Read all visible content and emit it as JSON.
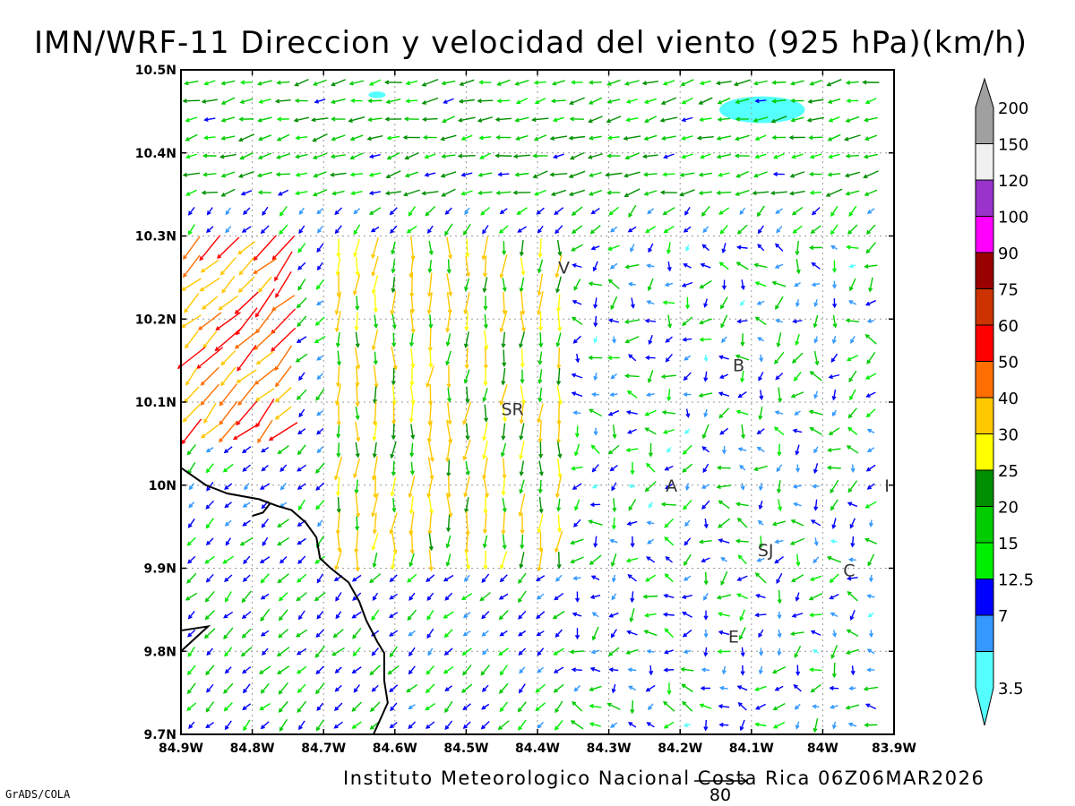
{
  "title": "IMN/WRF-11 Direccion y velocidad del viento (925 hPa)(km/h)",
  "footer": "Instituto Meteorologico Nacional Costa Rica 06Z06MAR2026",
  "brand": "GrADS/COLA",
  "reference_vector": {
    "label": "80",
    "speed": 80
  },
  "map": {
    "lon_range": [
      -84.9,
      -83.9
    ],
    "lat_range": [
      9.7,
      10.5
    ],
    "grid": true,
    "x_ticks": [
      {
        "value": -84.9,
        "label": "84.9W"
      },
      {
        "value": -84.8,
        "label": "84.8W"
      },
      {
        "value": -84.7,
        "label": "84.7W"
      },
      {
        "value": -84.6,
        "label": "84.6W"
      },
      {
        "value": -84.5,
        "label": "84.5W"
      },
      {
        "value": -84.4,
        "label": "84.4W"
      },
      {
        "value": -84.3,
        "label": "84.3W"
      },
      {
        "value": -84.2,
        "label": "84.2W"
      },
      {
        "value": -84.1,
        "label": "84.1W"
      },
      {
        "value": -84.0,
        "label": "84W"
      },
      {
        "value": -83.9,
        "label": "83.9W"
      }
    ],
    "y_ticks": [
      {
        "value": 10.5,
        "label": "10.5N"
      },
      {
        "value": 10.4,
        "label": "10.4N"
      },
      {
        "value": 10.3,
        "label": "10.3N"
      },
      {
        "value": 10.2,
        "label": "10.2N"
      },
      {
        "value": 10.1,
        "label": "10.1N"
      },
      {
        "value": 10.0,
        "label": "10N"
      },
      {
        "value": 9.9,
        "label": "9.9N"
      },
      {
        "value": 9.8,
        "label": "9.8N"
      },
      {
        "value": 9.7,
        "label": "9.7N"
      }
    ],
    "city_labels": [
      {
        "text": "V",
        "lon": -84.363,
        "lat": 10.262
      },
      {
        "text": "SR",
        "lon": -84.435,
        "lat": 10.092
      },
      {
        "text": "B",
        "lon": -84.118,
        "lat": 10.145
      },
      {
        "text": "A",
        "lon": -84.212,
        "lat": 10.0
      },
      {
        "text": "I",
        "lon": -83.91,
        "lat": 10.0
      },
      {
        "text": "SJ",
        "lon": -84.08,
        "lat": 9.922
      },
      {
        "text": "C",
        "lon": -83.963,
        "lat": 9.898
      },
      {
        "text": "E",
        "lon": -84.125,
        "lat": 9.818
      }
    ],
    "coastline": [
      [
        [
          -84.9,
          10.021
        ],
        [
          -84.865,
          10.0
        ],
        [
          -84.835,
          9.99
        ],
        [
          -84.79,
          9.983
        ],
        [
          -84.765,
          9.975
        ],
        [
          -84.745,
          9.97
        ],
        [
          -84.725,
          9.955
        ],
        [
          -84.71,
          9.937
        ],
        [
          -84.705,
          9.912
        ],
        [
          -84.69,
          9.9
        ],
        [
          -84.665,
          9.883
        ],
        [
          -84.65,
          9.86
        ],
        [
          -84.64,
          9.837
        ],
        [
          -84.625,
          9.812
        ],
        [
          -84.615,
          9.798
        ],
        [
          -84.615,
          9.765
        ],
        [
          -84.61,
          9.738
        ],
        [
          -84.63,
          9.7
        ]
      ],
      [
        [
          -84.79,
          9.983
        ],
        [
          -84.775,
          9.978
        ],
        [
          -84.785,
          9.967
        ],
        [
          -84.8,
          9.963
        ]
      ],
      [
        [
          -84.9,
          9.825
        ],
        [
          -84.862,
          9.83
        ],
        [
          -84.9,
          9.8
        ]
      ]
    ],
    "shaded_regions": [
      {
        "color": "#55ffff",
        "center": [
          -84.085,
          10.452
        ],
        "radius_deg": [
          0.06,
          0.016
        ]
      },
      {
        "color": "#55ffff",
        "center": [
          -84.625,
          10.47
        ],
        "radius_deg": [
          0.012,
          0.004
        ]
      }
    ]
  },
  "colorbar": {
    "levels": [
      {
        "color": "#55ffff",
        "label": "3.5"
      },
      {
        "color": "#3399ff",
        "label": "7"
      },
      {
        "color": "#0000ff",
        "label": "12.5"
      },
      {
        "color": "#00ee00",
        "label": "15"
      },
      {
        "color": "#00cc00",
        "label": "20"
      },
      {
        "color": "#008f00",
        "label": "25"
      },
      {
        "color": "#ffff00",
        "label": "30"
      },
      {
        "color": "#ffc800",
        "label": "40"
      },
      {
        "color": "#ff6e00",
        "label": "50"
      },
      {
        "color": "#ff0000",
        "label": "60"
      },
      {
        "color": "#cc3300",
        "label": "75"
      },
      {
        "color": "#990000",
        "label": "90"
      },
      {
        "color": "#ff00ff",
        "label": "100"
      },
      {
        "color": "#9933cc",
        "label": "120"
      },
      {
        "color": "#f0f0f0",
        "label": "150"
      },
      {
        "color": "#a0a0a0",
        "label": "200"
      }
    ]
  },
  "wind_regions": [
    {
      "region": "north band",
      "lon": [
        -84.9,
        -83.9
      ],
      "lat": [
        10.35,
        10.5
      ],
      "direction": "from ENE",
      "speed_kmh": [
        12,
        25
      ]
    },
    {
      "region": "northwest slope",
      "lon": [
        -84.9,
        -84.75
      ],
      "lat": [
        10.05,
        10.3
      ],
      "direction": "from NE",
      "speed_kmh": [
        30,
        60
      ]
    },
    {
      "region": "central valleys",
      "lon": [
        -84.7,
        -84.35
      ],
      "lat": [
        9.9,
        10.3
      ],
      "direction": "from N",
      "speed_kmh": [
        15,
        40
      ]
    },
    {
      "region": "eastern plateau",
      "lon": [
        -84.35,
        -83.9
      ],
      "lat": [
        9.7,
        10.3
      ],
      "direction": "variable",
      "speed_kmh": [
        3,
        20
      ]
    },
    {
      "region": "southwest coast",
      "lon": [
        -84.9,
        -84.6
      ],
      "lat": [
        9.7,
        9.95
      ],
      "direction": "from NE",
      "speed_kmh": [
        7,
        20
      ]
    }
  ]
}
